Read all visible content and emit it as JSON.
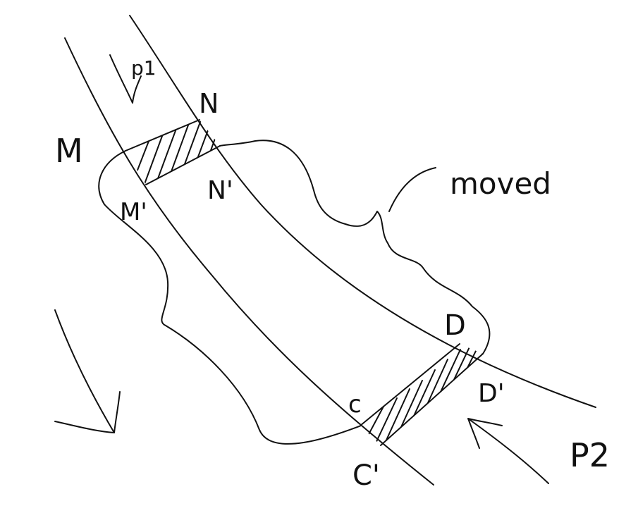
{
  "labels": {
    "M": "M",
    "N": "N",
    "M_prime": "M'",
    "N_prime": "N'",
    "C": "c",
    "D": "D",
    "C_prime": "C'",
    "D_prime": "D'",
    "p1": "p1",
    "p2": "P2",
    "moved": "moved"
  }
}
